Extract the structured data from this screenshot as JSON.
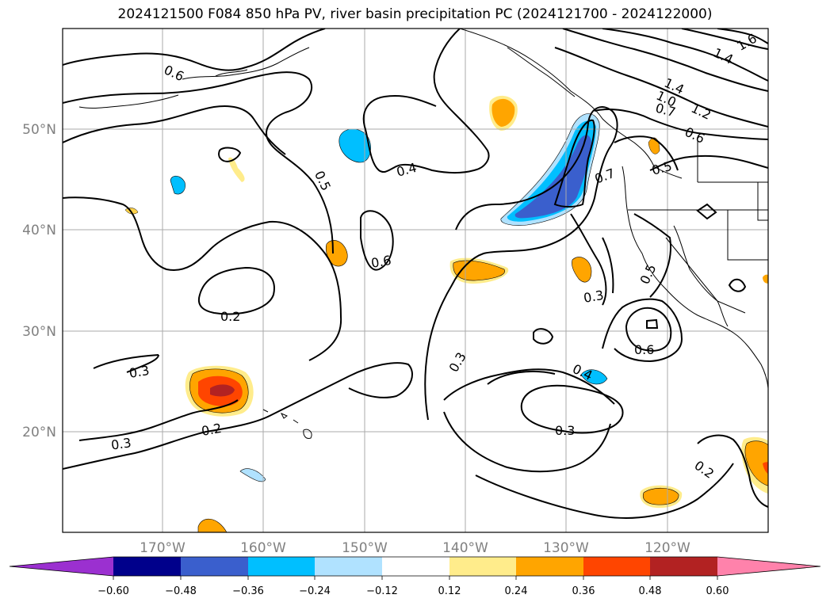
{
  "title": "2024121500 F084 850 hPa PV, river basin precipitation PC (2024121700 - 2024122000)",
  "map": {
    "lat_labels": [
      "50°N",
      "40°N",
      "30°N",
      "20°N"
    ],
    "lon_labels": [
      "170°W",
      "160°W",
      "150°W",
      "140°W",
      "130°W",
      "120°W"
    ],
    "contour_labels": [
      "0.6",
      "1.6",
      "1.4",
      "1.4",
      "1.0",
      "0.7",
      "1.2",
      "0.6",
      "0.5",
      "0.7",
      "0.4",
      "0.5",
      "0.6",
      "0.2",
      "0.3",
      "0.3",
      "0.3",
      "0.5",
      "0.6",
      "0.4",
      "0.2",
      "0.3",
      "0.3",
      "0.2"
    ]
  },
  "colorbar": {
    "ticks": [
      "−0.60",
      "−0.48",
      "−0.36",
      "−0.24",
      "−0.12",
      "0.12",
      "0.24",
      "0.36",
      "0.48",
      "0.60"
    ],
    "colors": [
      "#9b30d0",
      "#00008b",
      "#3a5fcd",
      "#00bfff",
      "#b0e2ff",
      "#ffffff",
      "#ffec8b",
      "#ffa500",
      "#ff4500",
      "#b22222",
      "#ff82ab"
    ]
  }
}
